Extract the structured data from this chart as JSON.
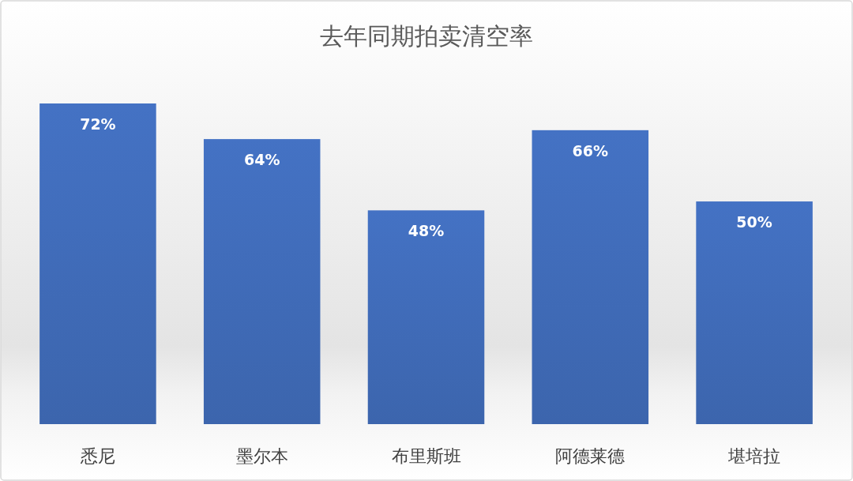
{
  "chart_data": {
    "type": "bar",
    "title": "去年同期拍卖清空率",
    "categories": [
      "悉尼",
      "墨尔本",
      "布里斯班",
      "阿德莱德",
      "堪培拉"
    ],
    "values": [
      72,
      64,
      48,
      66,
      50
    ],
    "value_labels": [
      "72%",
      "64%",
      "48%",
      "66%",
      "50%"
    ],
    "color": "#4472c4"
  }
}
